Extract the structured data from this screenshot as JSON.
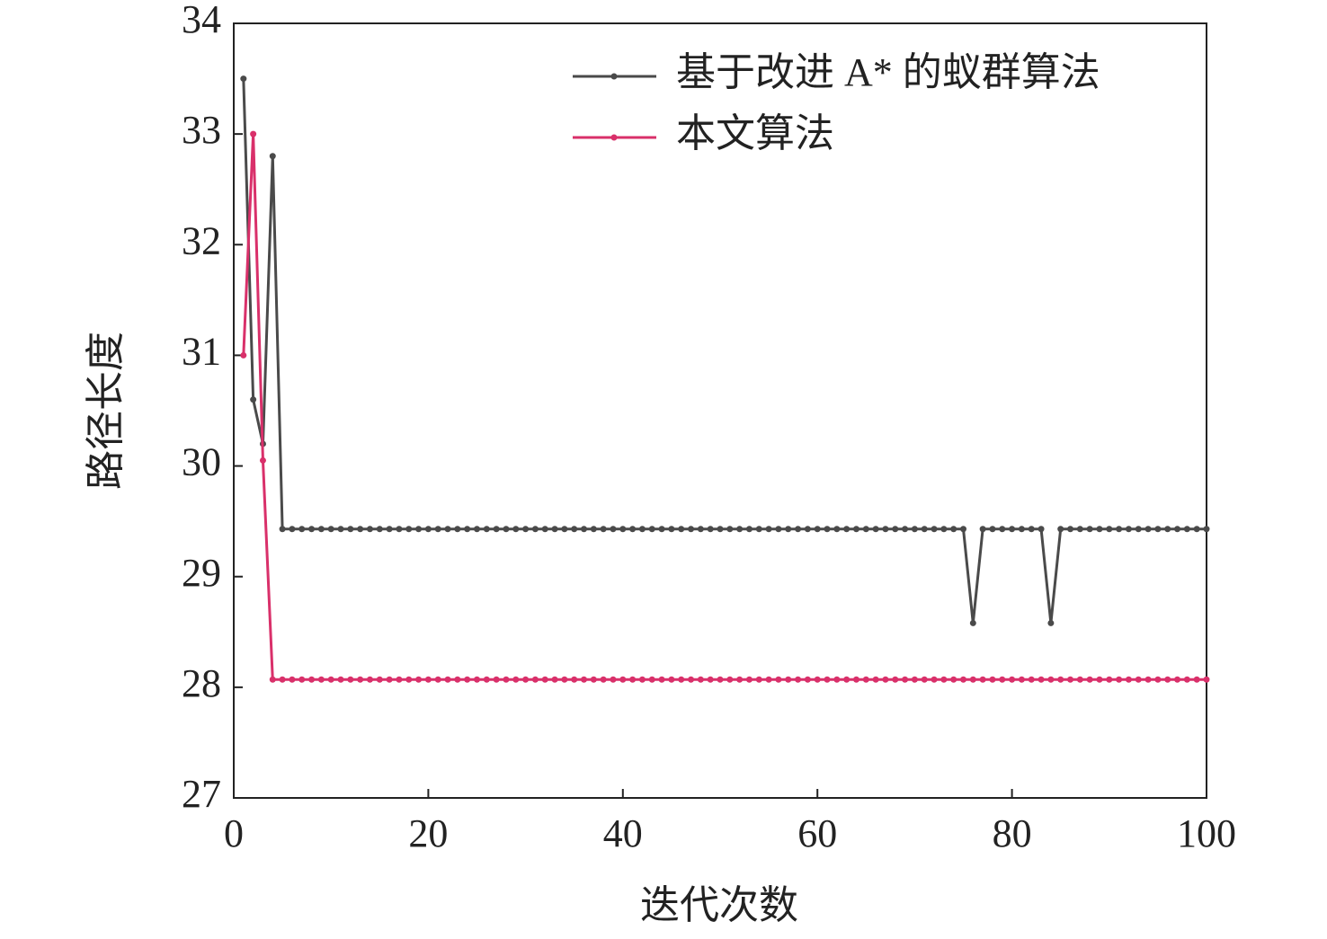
{
  "chart_data": {
    "type": "line",
    "x_label": "迭代次数",
    "y_label": "路径长度",
    "xlim": [
      0,
      100
    ],
    "xticks": [
      0,
      20,
      40,
      60,
      80,
      100
    ],
    "ylim": [
      27,
      34
    ],
    "yticks": [
      27,
      28,
      29,
      30,
      31,
      32,
      33,
      34
    ],
    "legend": "upper right",
    "x": [
      1,
      2,
      3,
      4,
      5,
      6,
      7,
      8,
      9,
      10,
      11,
      12,
      13,
      14,
      15,
      16,
      17,
      18,
      19,
      20,
      21,
      22,
      23,
      24,
      25,
      26,
      27,
      28,
      29,
      30,
      31,
      32,
      33,
      34,
      35,
      36,
      37,
      38,
      39,
      40,
      41,
      42,
      43,
      44,
      45,
      46,
      47,
      48,
      49,
      50,
      51,
      52,
      53,
      54,
      55,
      56,
      57,
      58,
      59,
      60,
      61,
      62,
      63,
      64,
      65,
      66,
      67,
      68,
      69,
      70,
      71,
      72,
      73,
      74,
      75,
      76,
      77,
      78,
      79,
      80,
      81,
      82,
      83,
      84,
      85,
      86,
      87,
      88,
      89,
      90,
      91,
      92,
      93,
      94,
      95,
      96,
      97,
      98,
      99,
      100
    ],
    "series": [
      {
        "name": "基于改进 A* 的蚁群算法",
        "color": "#4a4a4a",
        "values": [
          33.5,
          30.6,
          30.2,
          32.8,
          29.43,
          29.43,
          29.43,
          29.43,
          29.43,
          29.43,
          29.43,
          29.43,
          29.43,
          29.43,
          29.43,
          29.43,
          29.43,
          29.43,
          29.43,
          29.43,
          29.43,
          29.43,
          29.43,
          29.43,
          29.43,
          29.43,
          29.43,
          29.43,
          29.43,
          29.43,
          29.43,
          29.43,
          29.43,
          29.43,
          29.43,
          29.43,
          29.43,
          29.43,
          29.43,
          29.43,
          29.43,
          29.43,
          29.43,
          29.43,
          29.43,
          29.43,
          29.43,
          29.43,
          29.43,
          29.43,
          29.43,
          29.43,
          29.43,
          29.43,
          29.43,
          29.43,
          29.43,
          29.43,
          29.43,
          29.43,
          29.43,
          29.43,
          29.43,
          29.43,
          29.43,
          29.43,
          29.43,
          29.43,
          29.43,
          29.43,
          29.43,
          29.43,
          29.43,
          29.43,
          29.43,
          28.58,
          29.43,
          29.43,
          29.43,
          29.43,
          29.43,
          29.43,
          29.43,
          28.58,
          29.43,
          29.43,
          29.43,
          29.43,
          29.43,
          29.43,
          29.43,
          29.43,
          29.43,
          29.43,
          29.43,
          29.43,
          29.43,
          29.43,
          29.43,
          29.43
        ]
      },
      {
        "name": "本文算法",
        "color": "#d9306a",
        "values": [
          31,
          33,
          30.05,
          28.07,
          28.07,
          28.07,
          28.07,
          28.07,
          28.07,
          28.07,
          28.07,
          28.07,
          28.07,
          28.07,
          28.07,
          28.07,
          28.07,
          28.07,
          28.07,
          28.07,
          28.07,
          28.07,
          28.07,
          28.07,
          28.07,
          28.07,
          28.07,
          28.07,
          28.07,
          28.07,
          28.07,
          28.07,
          28.07,
          28.07,
          28.07,
          28.07,
          28.07,
          28.07,
          28.07,
          28.07,
          28.07,
          28.07,
          28.07,
          28.07,
          28.07,
          28.07,
          28.07,
          28.07,
          28.07,
          28.07,
          28.07,
          28.07,
          28.07,
          28.07,
          28.07,
          28.07,
          28.07,
          28.07,
          28.07,
          28.07,
          28.07,
          28.07,
          28.07,
          28.07,
          28.07,
          28.07,
          28.07,
          28.07,
          28.07,
          28.07,
          28.07,
          28.07,
          28.07,
          28.07,
          28.07,
          28.07,
          28.07,
          28.07,
          28.07,
          28.07,
          28.07,
          28.07,
          28.07,
          28.07,
          28.07,
          28.07,
          28.07,
          28.07,
          28.07,
          28.07,
          28.07,
          28.07,
          28.07,
          28.07,
          28.07,
          28.07,
          28.07,
          28.07,
          28.07,
          28.07
        ]
      }
    ]
  }
}
